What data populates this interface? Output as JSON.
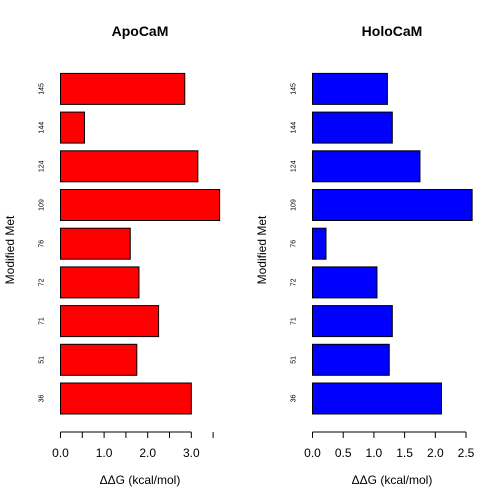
{
  "chart_data": [
    {
      "type": "bar",
      "orientation": "horizontal",
      "title": "ApoCaM",
      "xlabel": "ΔΔG (kcal/mol)",
      "ylabel": "Modified Met",
      "categories": [
        "36",
        "51",
        "71",
        "72",
        "76",
        "109",
        "124",
        "144",
        "145"
      ],
      "values": [
        3.0,
        1.75,
        2.25,
        1.8,
        1.6,
        3.65,
        3.15,
        0.55,
        2.85
      ],
      "xlim": [
        0,
        3.7
      ],
      "xticks": [
        0.0,
        1.0,
        2.0,
        3.0
      ],
      "xtick_labels": [
        "0.0",
        "1.0",
        "2.0",
        "3.0"
      ],
      "bar_color": "#ff0000"
    },
    {
      "type": "bar",
      "orientation": "horizontal",
      "title": "HoloCaM",
      "xlabel": "ΔΔG (kcal/mol)",
      "ylabel": "Modified Met",
      "categories": [
        "36",
        "51",
        "71",
        "72",
        "76",
        "109",
        "124",
        "144",
        "145"
      ],
      "values": [
        2.1,
        1.25,
        1.3,
        1.05,
        0.22,
        2.6,
        1.75,
        1.3,
        1.22
      ],
      "xlim": [
        0,
        2.6
      ],
      "xticks": [
        0.0,
        0.5,
        1.0,
        1.5,
        2.0,
        2.5
      ],
      "xtick_labels": [
        "0.0",
        "0.5",
        "1.0",
        "1.5",
        "2.0",
        "2.5"
      ],
      "bar_color": "#0000ff"
    }
  ]
}
